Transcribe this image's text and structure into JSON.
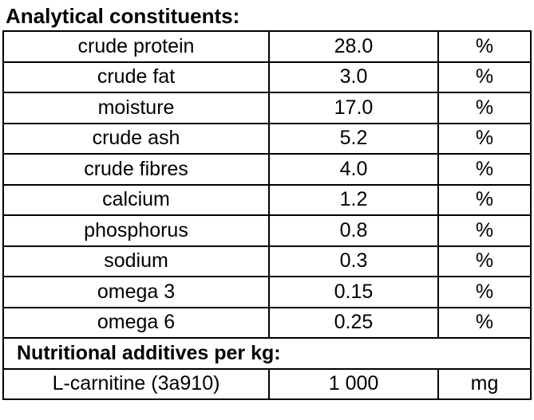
{
  "title": "Analytical constituents:",
  "colors": {
    "text": "#000000",
    "border": "#000000",
    "background": "#ffffff"
  },
  "analytical_table": {
    "columns": [
      "constituent",
      "value",
      "unit"
    ],
    "rows": [
      {
        "constituent": "crude protein",
        "value": "28.0",
        "unit": "%"
      },
      {
        "constituent": "crude fat",
        "value": "3.0",
        "unit": "%"
      },
      {
        "constituent": "moisture",
        "value": "17.0",
        "unit": "%"
      },
      {
        "constituent": "crude ash",
        "value": "5.2",
        "unit": "%"
      },
      {
        "constituent": "crude fibres",
        "value": "4.0",
        "unit": "%"
      },
      {
        "constituent": "calcium",
        "value": "1.2",
        "unit": "%"
      },
      {
        "constituent": "phosphorus",
        "value": "0.8",
        "unit": "%"
      },
      {
        "constituent": "sodium",
        "value": "0.3",
        "unit": "%"
      },
      {
        "constituent": "omega 3",
        "value": "0.15",
        "unit": "%"
      },
      {
        "constituent": "omega 6",
        "value": "0.25",
        "unit": "%"
      }
    ],
    "section_header": "Nutritional additives per kg:",
    "additives": [
      {
        "constituent": "L-carnitine (3a910)",
        "value": "1 000",
        "unit": "mg"
      }
    ]
  }
}
